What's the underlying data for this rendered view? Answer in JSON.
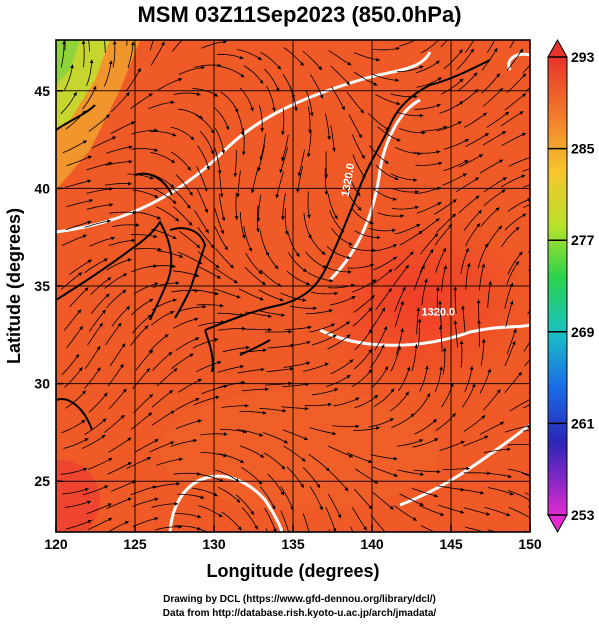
{
  "title": "MSM 03Z11Sep2023 (850.0hPa)",
  "x_axis": {
    "label": "Longitude (degrees)",
    "ticks": [
      "120",
      "125",
      "130",
      "135",
      "140",
      "145",
      "150"
    ],
    "range": [
      120,
      150
    ]
  },
  "y_axis": {
    "label": "Latitude  (degrees)",
    "ticks": [
      "25",
      "30",
      "35",
      "40",
      "45"
    ],
    "range": [
      22.4,
      47.6
    ]
  },
  "colorbar": {
    "ticks": [
      "293",
      "285",
      "277",
      "269",
      "261",
      "253"
    ],
    "range": [
      253,
      293
    ],
    "units": ""
  },
  "contours": [
    {
      "label": "1320.0",
      "lon": 138.7,
      "lat": 40.4
    },
    {
      "label": "1320.0",
      "lon": 144.2,
      "lat": 33.5
    }
  ],
  "credits": {
    "line1": "Drawing by DCL (https://www.gfd-dennou.org/library/dcl/)",
    "line2": "Data from http://database.rish.kyoto-u.ac.jp/arch/jmadata/"
  }
}
